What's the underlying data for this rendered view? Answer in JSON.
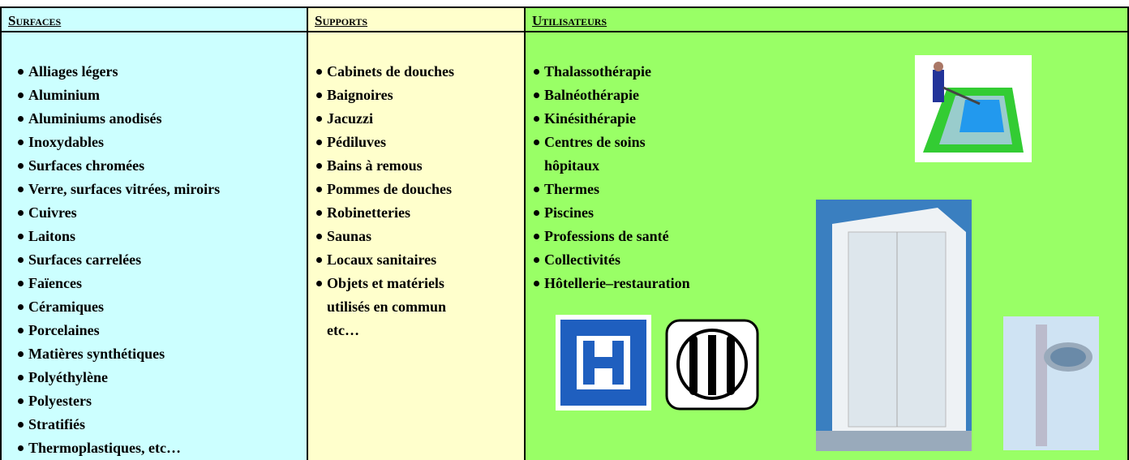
{
  "header": {
    "surfaces": "Surfaces",
    "supports": "Supports",
    "utilisateurs": "Utilisateurs"
  },
  "surfaces": [
    "Alliages légers",
    "Aluminium",
    "Aluminiums anodisés",
    "Inoxydables",
    "Surfaces chromées",
    "Verre, surfaces vitrées, miroirs",
    "Cuivres",
    "Laitons",
    "Surfaces carrelées",
    "Faïences",
    "Céramiques",
    "Porcelaines",
    "Matières synthétiques",
    "Polyéthylène",
    "Polyesters",
    "Stratifiés",
    "Thermoplastiques, etc…"
  ],
  "supports": [
    "Cabinets de douches",
    "Baignoires",
    "Jacuzzi",
    "Pédiluves",
    "Bains à remous",
    "Pommes de douches",
    "Robinetteries",
    "Saunas",
    "Locaux sanitaires",
    "Objets et matériels\nutilisés  en commun\netc…"
  ],
  "utilisateurs": [
    "Thalassothérapie",
    "Balnéothérapie",
    "Kinésithérapie",
    "Centres de soins\nhôpitaux",
    "Thermes",
    "Piscines",
    "Professions de santé",
    "Collectivités",
    "Hôtellerie–restauration"
  ]
}
